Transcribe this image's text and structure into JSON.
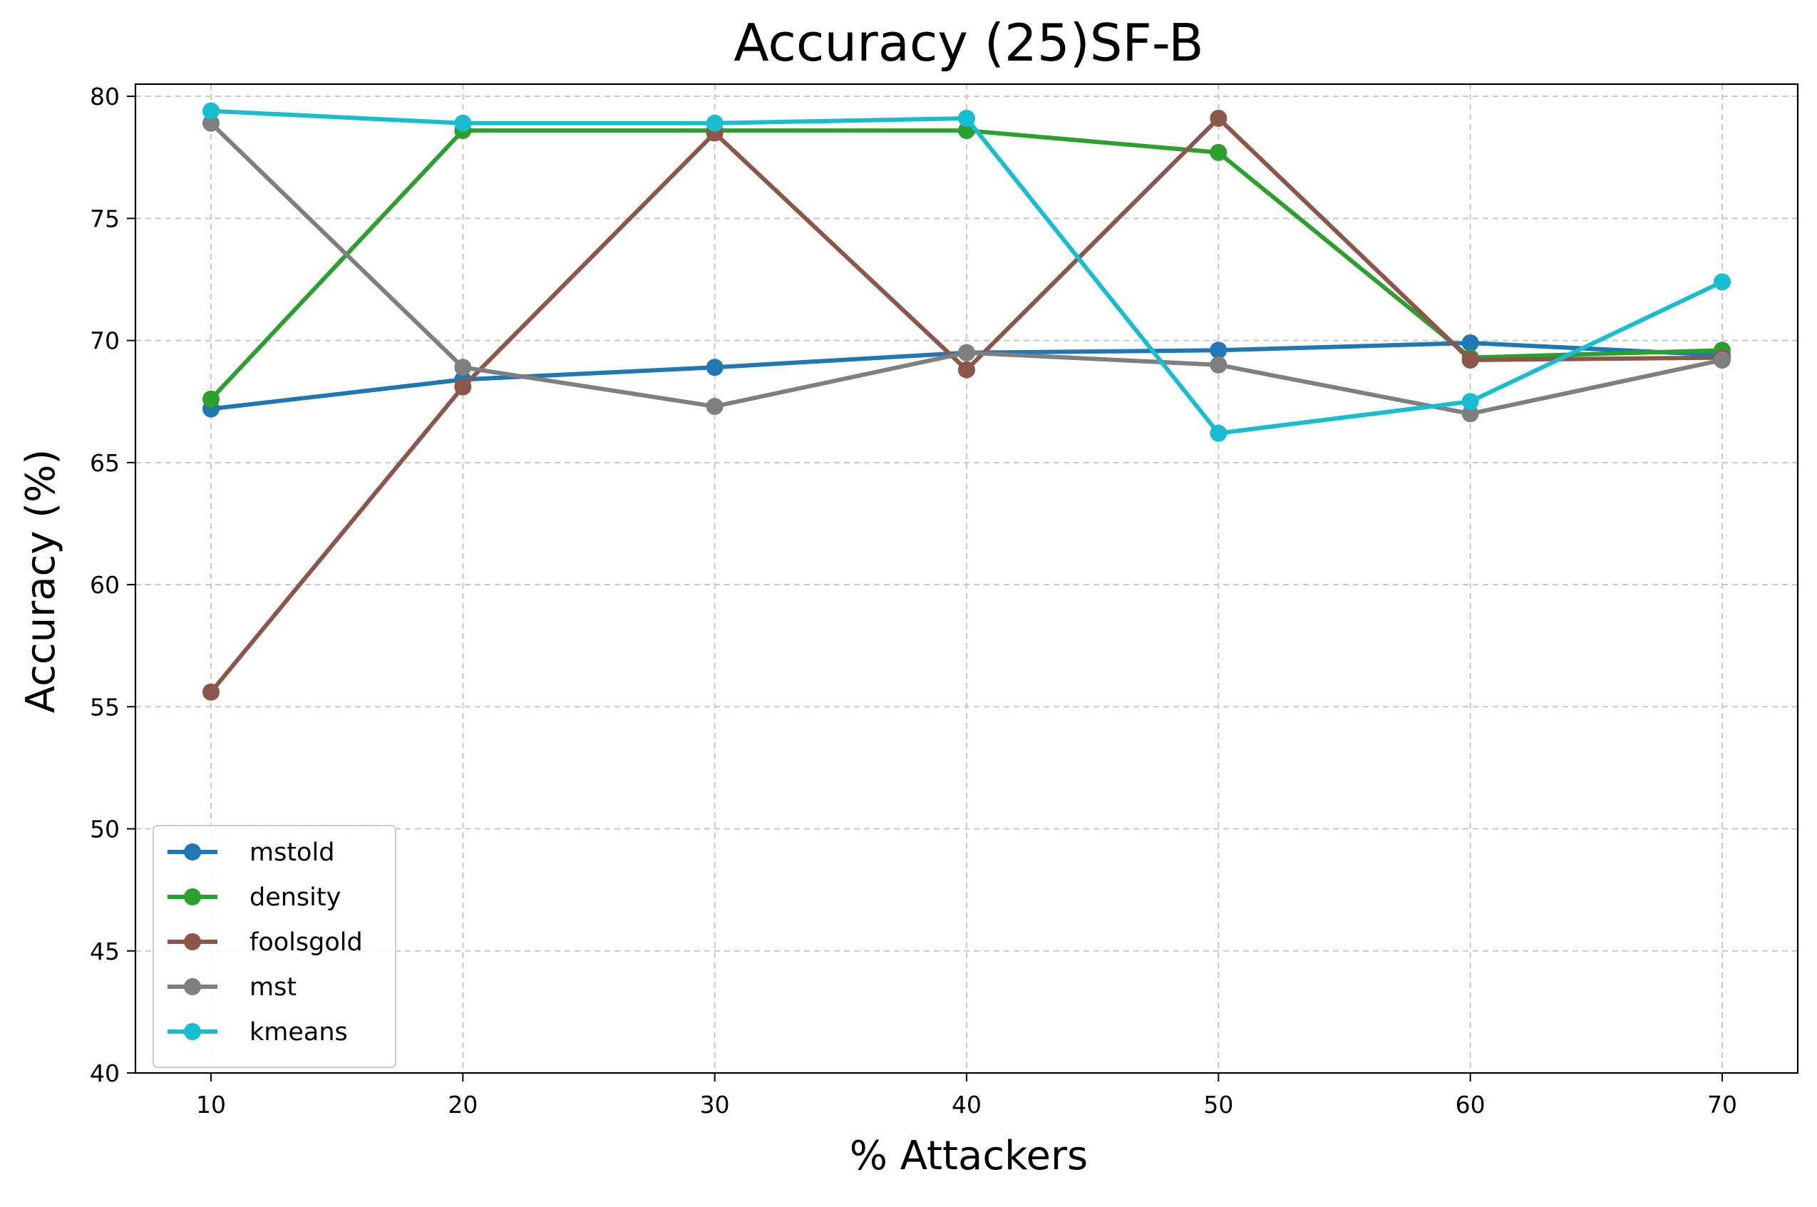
{
  "chart_data": {
    "type": "line",
    "title": "Accuracy (25)SF-B",
    "xlabel": "% Attackers",
    "ylabel": "Accuracy (%)",
    "x": [
      10,
      20,
      30,
      40,
      50,
      60,
      70
    ],
    "xlim": [
      7,
      73
    ],
    "ylim": [
      40,
      80.5
    ],
    "xticks": [
      10,
      20,
      30,
      40,
      50,
      60,
      70
    ],
    "yticks": [
      40,
      45,
      50,
      55,
      60,
      65,
      70,
      75,
      80
    ],
    "grid": true,
    "legend_position": "lower-left",
    "series": [
      {
        "name": "mstold",
        "color": "#1f77b4",
        "values": [
          67.2,
          68.4,
          68.9,
          69.5,
          69.6,
          69.9,
          69.4
        ]
      },
      {
        "name": "density",
        "color": "#2ca02c",
        "values": [
          67.6,
          78.6,
          78.6,
          78.6,
          77.7,
          69.3,
          69.6
        ]
      },
      {
        "name": "foolsgold",
        "color": "#8c564b",
        "values": [
          55.6,
          68.1,
          78.5,
          68.8,
          79.1,
          69.2,
          69.3
        ]
      },
      {
        "name": "mst",
        "color": "#7f7f7f",
        "values": [
          78.9,
          68.9,
          67.3,
          69.5,
          69.0,
          67.0,
          69.2
        ]
      },
      {
        "name": "kmeans",
        "color": "#17becf",
        "values": [
          79.4,
          78.9,
          78.9,
          79.1,
          66.2,
          67.5,
          72.4
        ]
      }
    ]
  }
}
